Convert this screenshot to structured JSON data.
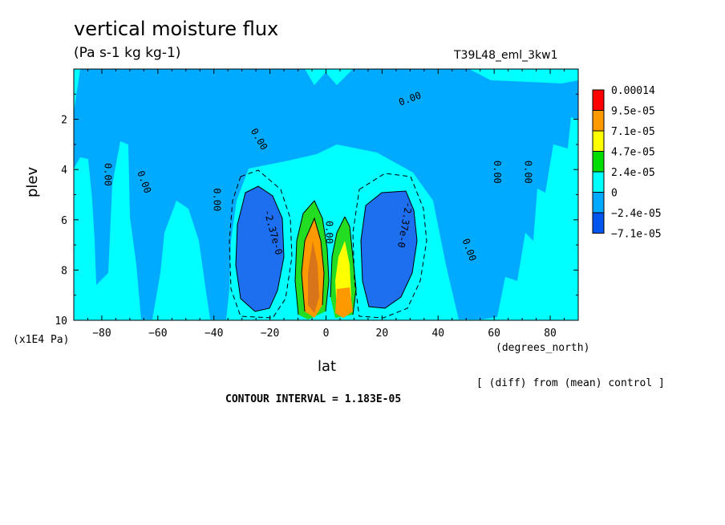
{
  "header": {
    "title": "vertical moisture flux",
    "units": "(Pa s-1 kg kg-1)",
    "run_name": "T39L48_eml_3kw1"
  },
  "footer": {
    "diff_note": "[ (diff) from (mean) control ]",
    "contour_interval": "CONTOUR INTERVAL = 1.183E-05"
  },
  "chart_data": {
    "type": "heatmap",
    "title": "vertical moisture flux",
    "xlabel": "lat",
    "ylabel": "plev",
    "x_units": "(degrees_north)",
    "y_units": "(x1E4 Pa)",
    "xlim": [
      -90,
      90
    ],
    "ylim": [
      10,
      0
    ],
    "x_ticks": [
      -80,
      -60,
      -40,
      -20,
      0,
      20,
      40,
      60,
      80
    ],
    "x_tick_labels": [
      "−80",
      "−60",
      "−40",
      "−20",
      "0",
      "20",
      "40",
      "60",
      "80"
    ],
    "y_ticks": [
      2,
      4,
      6,
      8,
      10
    ],
    "y_tick_labels": [
      "2",
      "4",
      "6",
      "8",
      "10"
    ],
    "colorbar": {
      "labels": [
        "0.00014",
        "9.5e-05",
        "7.1e-05",
        "4.7e-05",
        "2.4e-05",
        "0",
        "−2.4e-05",
        "−7.1e-05"
      ],
      "colors": [
        "#ff0000",
        "#ff9900",
        "#ffff00",
        "#00dd00",
        "#00ffff",
        "#00aaff",
        "#0055ee"
      ]
    },
    "colors": {
      "background_level": "#00ffff",
      "mid_level": "#00aaff",
      "negative_core": "#1e6ef0",
      "green": "#22dd22",
      "orange": "#ff9900",
      "darkorange": "#d8741a",
      "yellow": "#ffff00"
    },
    "contour_labels": [
      {
        "text": "0.00",
        "lat": -78,
        "plev": 4.2,
        "angle": 90
      },
      {
        "text": "0.00",
        "lat": -65,
        "plev": 4.5,
        "angle": 70
      },
      {
        "text": "0.00",
        "lat": -39,
        "plev": 5.2,
        "angle": 90
      },
      {
        "text": "0.00",
        "lat": -24,
        "plev": 2.8,
        "angle": 60
      },
      {
        "text": "0.00",
        "lat": 30,
        "plev": 1.2,
        "angle": -20
      },
      {
        "text": "0.00",
        "lat": 61,
        "plev": 4.1,
        "angle": 90
      },
      {
        "text": "0.00",
        "lat": 72,
        "plev": 4.1,
        "angle": 90
      },
      {
        "text": "0.00",
        "lat": 51,
        "plev": 7.2,
        "angle": 70
      },
      {
        "text": "0.00",
        "lat": 1,
        "plev": 6.5,
        "angle": 90
      },
      {
        "text": "-2.37e-0",
        "lat": -19,
        "plev": 6.5,
        "angle": 75
      },
      {
        "text": "-2.37e-0",
        "lat": 28,
        "plev": 6.2,
        "angle": 100
      }
    ]
  }
}
